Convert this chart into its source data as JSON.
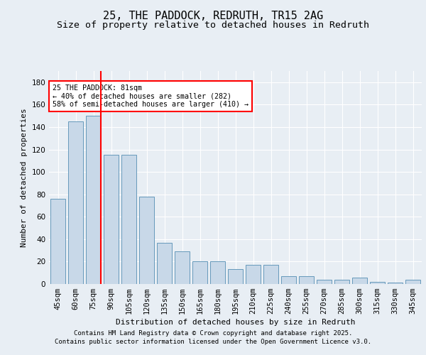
{
  "title": "25, THE PADDOCK, REDRUTH, TR15 2AG",
  "subtitle": "Size of property relative to detached houses in Redruth",
  "xlabel": "Distribution of detached houses by size in Redruth",
  "ylabel": "Number of detached properties",
  "categories": [
    "45sqm",
    "60sqm",
    "75sqm",
    "90sqm",
    "105sqm",
    "120sqm",
    "135sqm",
    "150sqm",
    "165sqm",
    "180sqm",
    "195sqm",
    "210sqm",
    "225sqm",
    "240sqm",
    "255sqm",
    "270sqm",
    "285sqm",
    "300sqm",
    "315sqm",
    "330sqm",
    "345sqm"
  ],
  "values": [
    76,
    145,
    150,
    115,
    115,
    78,
    37,
    29,
    20,
    20,
    13,
    17,
    17,
    7,
    7,
    4,
    4,
    6,
    2,
    1,
    4
  ],
  "bar_color": "#c8d8e8",
  "bar_edge_color": "#6699bb",
  "red_line_x": 2.43,
  "annotation_text": "25 THE PADDOCK: 81sqm\n← 40% of detached houses are smaller (282)\n58% of semi-detached houses are larger (410) →",
  "footer_line1": "Contains HM Land Registry data © Crown copyright and database right 2025.",
  "footer_line2": "Contains public sector information licensed under the Open Government Licence v3.0.",
  "ylim": [
    0,
    190
  ],
  "yticks": [
    0,
    20,
    40,
    60,
    80,
    100,
    120,
    140,
    160,
    180
  ],
  "background_color": "#e8eef4",
  "plot_bg_color": "#e8eef4",
  "grid_color": "#ffffff",
  "title_fontsize": 11,
  "subtitle_fontsize": 9.5,
  "axis_label_fontsize": 8,
  "tick_fontsize": 7.5,
  "footer_fontsize": 6.5
}
